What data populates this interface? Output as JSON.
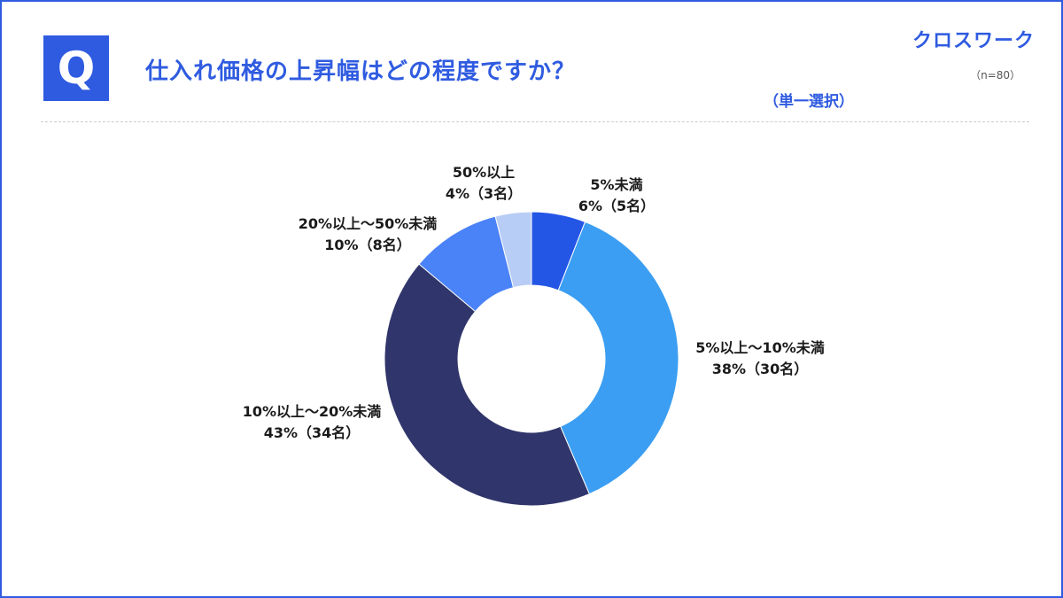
{
  "header": {
    "q_label": "Q",
    "title": "仕入れ価格の上昇幅はどの程度ですか？",
    "logo": "クロスワーク",
    "sample": "（n=80）",
    "selection": "（単一選択）"
  },
  "chart_data": {
    "type": "pie",
    "donut": true,
    "start": "top, clockwise",
    "categories": [
      "5%未満",
      "5%以上～10%未満",
      "10%以上～20%未満",
      "20%以上～50%未満",
      "50%以上"
    ],
    "values": [
      6,
      38,
      43,
      10,
      4
    ],
    "counts": [
      5,
      30,
      34,
      8,
      3
    ],
    "value_labels": [
      "6%（5名）",
      "38%（30名）",
      "43%（34名）",
      "10%（8名）",
      "4%（3名）"
    ],
    "colors": [
      "#2456e6",
      "#3b9ef2",
      "#30356b",
      "#4a82f7",
      "#b8cdf5"
    ]
  }
}
